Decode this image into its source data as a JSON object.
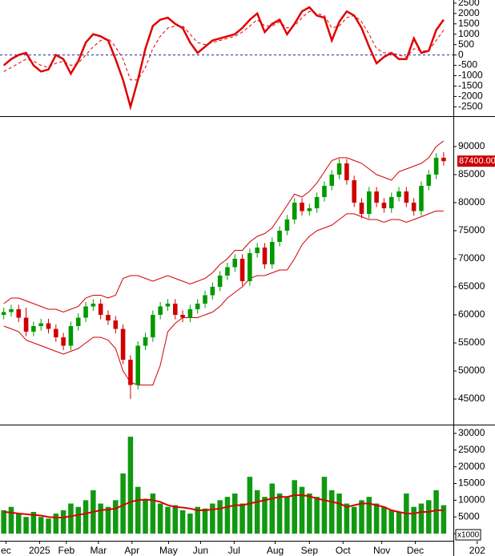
{
  "chart_data": [
    {
      "type": "line",
      "x": [
        0,
        1,
        2,
        3,
        4,
        5,
        6,
        7,
        8,
        9,
        10,
        11,
        12,
        13,
        14,
        15,
        16,
        17,
        18,
        19,
        20,
        21,
        22,
        23,
        24,
        25,
        26,
        27,
        28,
        29,
        30,
        31,
        32,
        33,
        34,
        35,
        36,
        37,
        38,
        39,
        40,
        41,
        42,
        43,
        44,
        45,
        46,
        47,
        48,
        49,
        50,
        51,
        52,
        53,
        54,
        55,
        56,
        57,
        58,
        59
      ],
      "xlim": [
        -0.5,
        60.3
      ],
      "ylim": [
        -2950,
        2650
      ],
      "yticks": [
        -2500,
        -2000,
        -1500,
        -1000,
        -500,
        0,
        500,
        1000,
        1500,
        2000,
        2500
      ],
      "hline": {
        "value": 0,
        "color": "#1a2aa8"
      },
      "series": [
        {
          "color": "#e00000",
          "style": "solid",
          "values": [
            -500,
            -200,
            0,
            100,
            -500,
            -800,
            -700,
            0,
            -200,
            -900,
            -300,
            600,
            1000,
            900,
            700,
            -200,
            -1200,
            -2500,
            -1200,
            300,
            1400,
            1700,
            1800,
            1500,
            1300,
            600,
            100,
            400,
            700,
            800,
            900,
            1000,
            1300,
            1700,
            2000,
            1100,
            1500,
            1700,
            1000,
            1500,
            2100,
            2300,
            1900,
            1800,
            700,
            1600,
            2100,
            1900,
            1300,
            400,
            -400,
            -100,
            100,
            -200,
            -200,
            800,
            100,
            200,
            1200,
            1700
          ]
        },
        {
          "color": "#e00000",
          "style": "dashed",
          "values": [
            -800,
            -600,
            -400,
            -200,
            -300,
            -500,
            -600,
            -400,
            -300,
            -500,
            -400,
            0,
            400,
            700,
            800,
            400,
            -200,
            -1200,
            -1200,
            -600,
            300,
            900,
            1300,
            1400,
            1400,
            1000,
            600,
            500,
            600,
            700,
            800,
            900,
            1100,
            1400,
            1700,
            1400,
            1400,
            1600,
            1300,
            1400,
            1800,
            2100,
            2000,
            1900,
            1300,
            1400,
            1800,
            1900,
            1600,
            1000,
            300,
            100,
            100,
            0,
            -100,
            300,
            200,
            200,
            700,
            1200
          ]
        }
      ]
    },
    {
      "type": "candlestick",
      "x": [
        0,
        1,
        2,
        3,
        4,
        5,
        6,
        7,
        8,
        9,
        10,
        11,
        12,
        13,
        14,
        15,
        16,
        17,
        18,
        19,
        20,
        21,
        22,
        23,
        24,
        25,
        26,
        27,
        28,
        29,
        30,
        31,
        32,
        33,
        34,
        35,
        36,
        37,
        38,
        39,
        40,
        41,
        42,
        43,
        44,
        45,
        46,
        47,
        48,
        49,
        50,
        51,
        52,
        53,
        54,
        55,
        56,
        57,
        58,
        59
      ],
      "xlim": [
        -0.5,
        60.3
      ],
      "ylim": [
        40440,
        95270
      ],
      "yticks": [
        45000,
        50000,
        55000,
        60000,
        65000,
        70000,
        75000,
        80000,
        85000,
        90000
      ],
      "up_color": "#009900",
      "down_color": "#d00000",
      "open": [
        60000,
        60500,
        61000,
        59500,
        57000,
        58000,
        58500,
        57500,
        56000,
        54500,
        58000,
        59500,
        61500,
        62000,
        60000,
        59000,
        57500,
        52000,
        47500,
        54500,
        56000,
        60000,
        61500,
        62000,
        60000,
        59500,
        61000,
        62000,
        63500,
        65000,
        67000,
        68500,
        70000,
        66000,
        71000,
        72000,
        69000,
        73000,
        75000,
        77000,
        80000,
        78500,
        79000,
        81000,
        83000,
        85000,
        87000,
        84000,
        80000,
        78000,
        82000,
        80000,
        79000,
        81000,
        82000,
        80000,
        78500,
        83000,
        85000,
        88000
      ],
      "high": [
        61300,
        61800,
        61800,
        61300,
        58800,
        59300,
        59300,
        58300,
        56800,
        58800,
        60300,
        62300,
        62800,
        62800,
        60800,
        59800,
        58300,
        52800,
        55300,
        56800,
        60800,
        62300,
        62800,
        62800,
        60800,
        61800,
        62800,
        64300,
        65800,
        67800,
        69300,
        70800,
        70800,
        71800,
        72800,
        72800,
        73800,
        75800,
        77800,
        80800,
        80800,
        79800,
        81800,
        83800,
        85800,
        87800,
        87800,
        84800,
        80800,
        82800,
        82800,
        80800,
        81800,
        82800,
        82800,
        80800,
        83800,
        85800,
        88800,
        89000
      ],
      "low": [
        59200,
        59700,
        58700,
        56200,
        56200,
        57200,
        56700,
        55200,
        53700,
        53700,
        57200,
        58700,
        60700,
        59200,
        58200,
        56700,
        51200,
        45000,
        46700,
        53700,
        55200,
        59200,
        60700,
        59200,
        58700,
        58700,
        60200,
        61200,
        62700,
        64200,
        66200,
        67700,
        65200,
        65200,
        70200,
        68200,
        68200,
        72200,
        74200,
        76200,
        77700,
        77700,
        78200,
        80200,
        82200,
        84200,
        83200,
        79200,
        77200,
        77200,
        79200,
        78200,
        78200,
        80200,
        79200,
        77700,
        77700,
        82200,
        84200,
        86600
      ],
      "close": [
        60500,
        61000,
        59500,
        57000,
        58000,
        58500,
        57500,
        56000,
        54500,
        58000,
        59500,
        61500,
        62000,
        60000,
        59000,
        57500,
        52000,
        47500,
        54500,
        56000,
        60000,
        61500,
        62000,
        60000,
        59500,
        61000,
        62000,
        63500,
        65000,
        67000,
        68500,
        70000,
        66000,
        71000,
        72000,
        69000,
        73000,
        75000,
        77000,
        80000,
        78500,
        79000,
        81000,
        83000,
        85000,
        87000,
        84000,
        80000,
        78000,
        82000,
        80000,
        79000,
        81000,
        82000,
        80000,
        78500,
        83000,
        85000,
        88000,
        87400
      ],
      "bands": [
        {
          "color": "#d00000",
          "values": [
            62000,
            63000,
            63000,
            62500,
            62000,
            61500,
            61000,
            61000,
            60500,
            61000,
            61500,
            63000,
            63500,
            63500,
            63000,
            63500,
            66500,
            67000,
            67000,
            66500,
            66000,
            66500,
            67000,
            66500,
            66000,
            65500,
            66000,
            66500,
            67500,
            69000,
            70000,
            71500,
            71500,
            73000,
            74000,
            74500,
            75500,
            77500,
            79500,
            81500,
            81000,
            82000,
            83500,
            85500,
            87500,
            88000,
            88000,
            87500,
            87000,
            86000,
            85000,
            84500,
            84000,
            85500,
            86000,
            86500,
            87000,
            88000,
            90000,
            91000
          ]
        },
        {
          "color": "#d00000",
          "values": [
            58000,
            57500,
            57000,
            55500,
            55000,
            54500,
            54000,
            53500,
            53000,
            53500,
            54000,
            55000,
            56000,
            56000,
            55500,
            54000,
            50000,
            48000,
            47500,
            47500,
            47500,
            51000,
            57000,
            58500,
            59500,
            59500,
            59500,
            60000,
            60500,
            61500,
            63000,
            64000,
            65000,
            66500,
            67000,
            67000,
            67500,
            68000,
            68000,
            70000,
            72500,
            74000,
            75000,
            75500,
            76000,
            77000,
            78000,
            78000,
            77500,
            77000,
            77000,
            76500,
            77000,
            77000,
            76500,
            77000,
            77500,
            78000,
            78500,
            78500
          ]
        }
      ],
      "last_price": {
        "value": 87400,
        "label": "87400.00",
        "color": "#cc0000"
      }
    },
    {
      "type": "bar",
      "x": [
        0,
        1,
        2,
        3,
        4,
        5,
        6,
        7,
        8,
        9,
        10,
        11,
        12,
        13,
        14,
        15,
        16,
        17,
        18,
        19,
        20,
        21,
        22,
        23,
        24,
        25,
        26,
        27,
        28,
        29,
        30,
        31,
        32,
        33,
        34,
        35,
        36,
        37,
        38,
        39,
        40,
        41,
        42,
        43,
        44,
        45,
        46,
        47,
        48,
        49,
        50,
        51,
        52,
        53,
        54,
        55,
        56,
        57,
        58,
        59
      ],
      "xlim": [
        -0.5,
        60.3
      ],
      "ylim": [
        -2140,
        32380
      ],
      "yticks": [
        0,
        5000,
        10000,
        15000,
        20000,
        25000,
        30000
      ],
      "unit_label": "x1000",
      "color": "#119911",
      "values": [
        7000,
        8000,
        6000,
        5000,
        6500,
        5000,
        4500,
        6000,
        7000,
        9000,
        8000,
        10000,
        13000,
        9000,
        8000,
        10000,
        18000,
        29000,
        14000,
        10000,
        12000,
        9000,
        8000,
        8500,
        7000,
        6000,
        8000,
        7500,
        9000,
        10000,
        11000,
        12000,
        9000,
        17000,
        13000,
        11000,
        15000,
        12000,
        11000,
        16000,
        14000,
        12000,
        11000,
        17000,
        13000,
        12000,
        9000,
        8000,
        10000,
        11000,
        9000,
        8000,
        7000,
        6500,
        12000,
        8000,
        9000,
        10000,
        13000,
        8500
      ],
      "overlay": {
        "color": "#dd0000",
        "values": [
          6500,
          6300,
          6000,
          5800,
          5600,
          5400,
          5000,
          4800,
          4800,
          5200,
          5600,
          6000,
          6500,
          7000,
          7200,
          7500,
          8500,
          9500,
          10000,
          10200,
          10000,
          9500,
          8500,
          8000,
          7800,
          7500,
          7000,
          7000,
          7200,
          7500,
          8000,
          8500,
          8500,
          9000,
          9500,
          10000,
          10500,
          11000,
          11000,
          11500,
          11500,
          11200,
          10500,
          10000,
          9500,
          9000,
          8000,
          8500,
          9000,
          9000,
          8500,
          8000,
          7000,
          6500,
          6000,
          6000,
          6500,
          6500,
          7000,
          7000
        ]
      },
      "xticks": [
        {
          "value": 0.3,
          "label": "ec"
        },
        {
          "value": 4.8,
          "label": "2025"
        },
        {
          "value": 8.4,
          "label": "Feb"
        },
        {
          "value": 12.7,
          "label": "Mar"
        },
        {
          "value": 17.2,
          "label": "Apr"
        },
        {
          "value": 22.1,
          "label": "May"
        },
        {
          "value": 26.4,
          "label": "Jun"
        },
        {
          "value": 30.9,
          "label": "Jul"
        },
        {
          "value": 36.4,
          "label": "Aug"
        },
        {
          "value": 41.0,
          "label": "Sep"
        },
        {
          "value": 45.5,
          "label": "Oct"
        },
        {
          "value": 50.7,
          "label": "Nov"
        },
        {
          "value": 55.2,
          "label": "Dec"
        },
        {
          "value": 63.5,
          "label": "202"
        }
      ]
    }
  ]
}
